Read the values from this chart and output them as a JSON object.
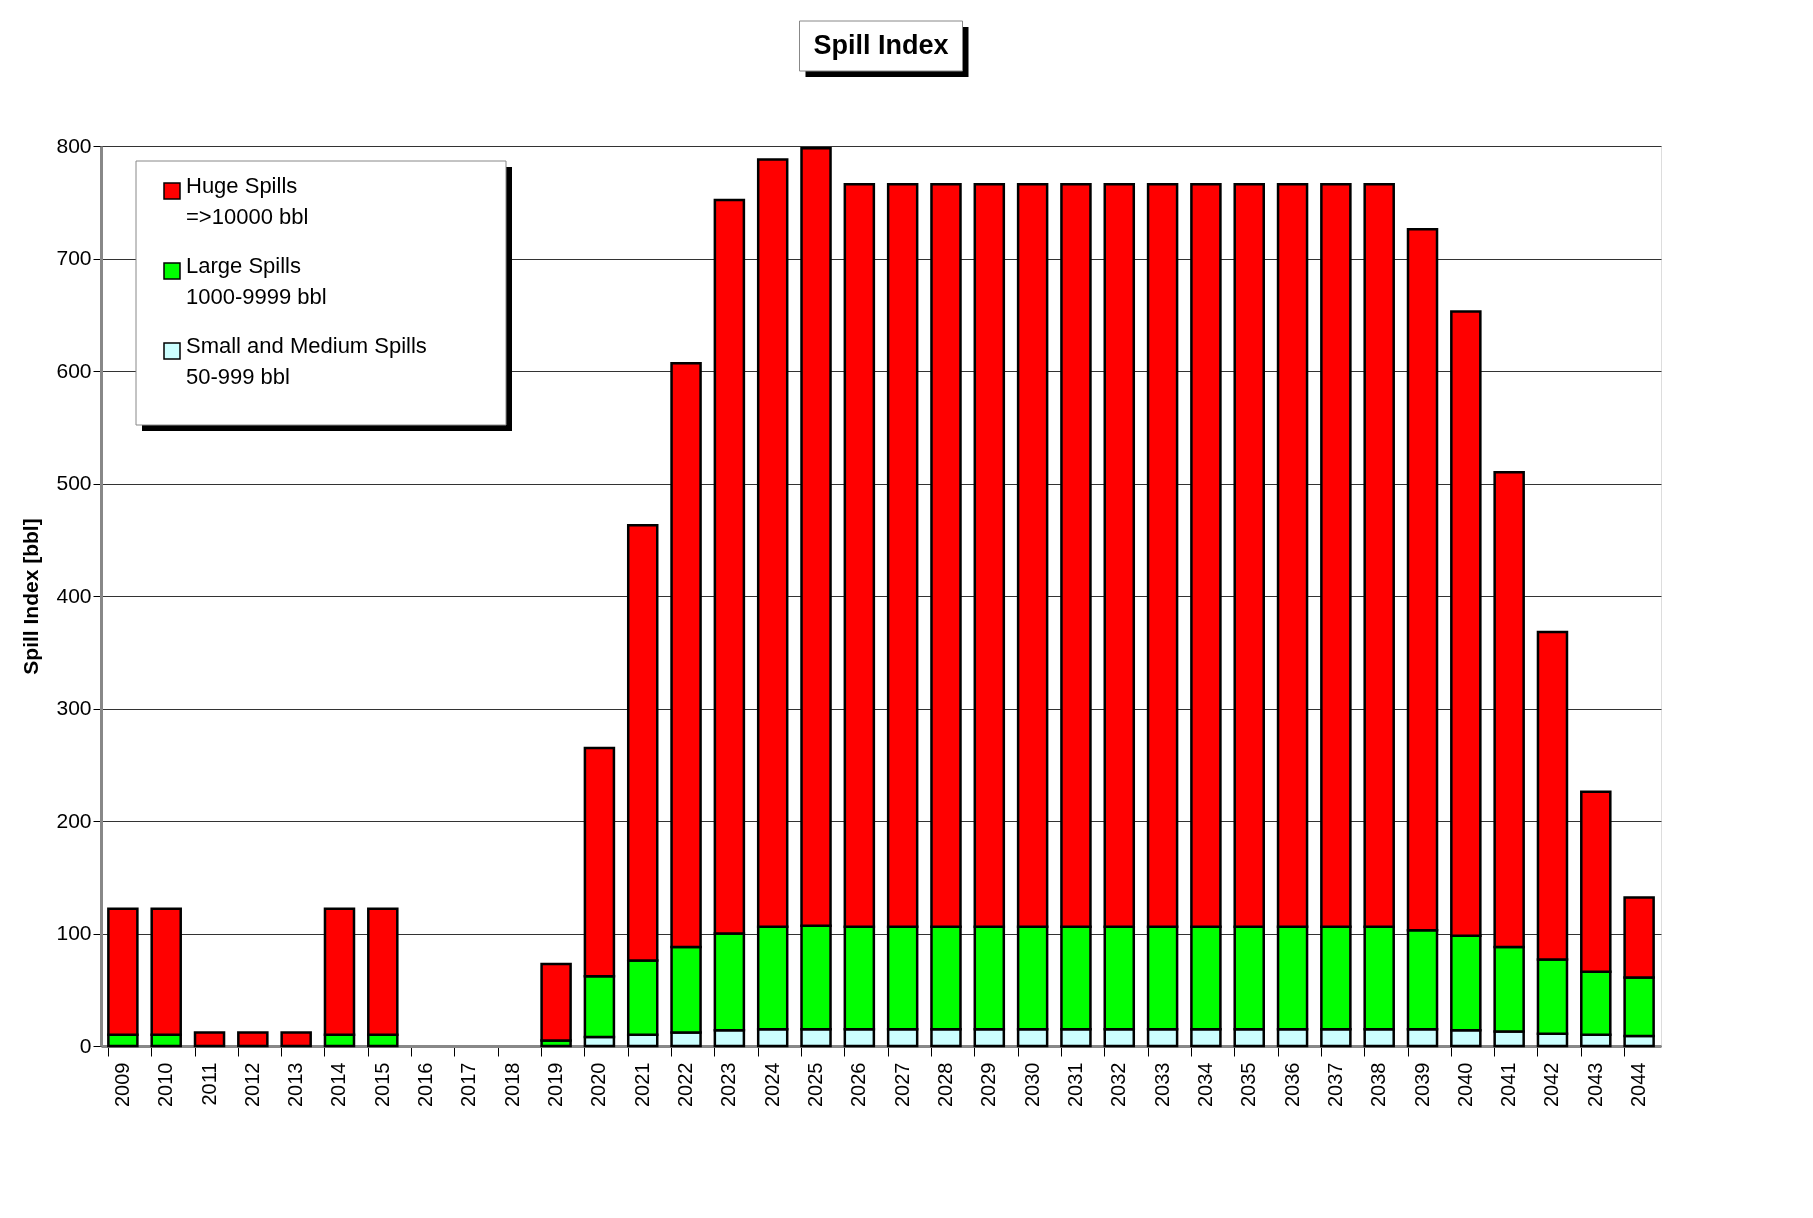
{
  "chart_data": {
    "type": "bar",
    "title": "Spill Index",
    "ylabel": "Spill Index [bbl]",
    "stacked": true,
    "categories": [
      "2009",
      "2010",
      "2011",
      "2012",
      "2013",
      "2014",
      "2015",
      "2016",
      "2017",
      "2018",
      "2019",
      "2020",
      "2021",
      "2022",
      "2023",
      "2024",
      "2025",
      "2026",
      "2027",
      "2028",
      "2029",
      "2030",
      "2031",
      "2032",
      "2033",
      "2034",
      "2035",
      "2036",
      "2037",
      "2038",
      "2039",
      "2040",
      "2041",
      "2042",
      "2043",
      "2044"
    ],
    "series": [
      {
        "name": "Small and Medium Spills\n50-999 bbl",
        "color": "#ccffff",
        "values": [
          0,
          0,
          0,
          0,
          0,
          0,
          0,
          null,
          null,
          null,
          0,
          8,
          10,
          12,
          14,
          15,
          15,
          15,
          15,
          15,
          15,
          15,
          15,
          15,
          15,
          15,
          15,
          15,
          15,
          15,
          15,
          14,
          13,
          11,
          10,
          9
        ]
      },
      {
        "name": "Large Spills\n1000-9999 bbl",
        "color": "#00ff00",
        "values": [
          10,
          10,
          0,
          0,
          0,
          10,
          10,
          null,
          null,
          null,
          5,
          54,
          66,
          76,
          86,
          91,
          92,
          91,
          91,
          91,
          91,
          91,
          91,
          91,
          91,
          91,
          91,
          91,
          91,
          91,
          88,
          84,
          75,
          66,
          56,
          52
        ]
      },
      {
        "name": "Huge Spills\n=>10000 bbl",
        "color": "#ff0000",
        "values": [
          112,
          112,
          12,
          12,
          12,
          112,
          112,
          null,
          null,
          null,
          68,
          203,
          387,
          519,
          652,
          682,
          691,
          660,
          660,
          660,
          660,
          660,
          660,
          660,
          660,
          660,
          660,
          660,
          660,
          660,
          623,
          555,
          422,
          291,
          160,
          71
        ]
      }
    ],
    "ylim": [
      0,
      800
    ],
    "yticks": [
      0,
      100,
      200,
      300,
      400,
      500,
      600,
      700,
      800
    ],
    "grid": "y",
    "legend": "top left"
  }
}
